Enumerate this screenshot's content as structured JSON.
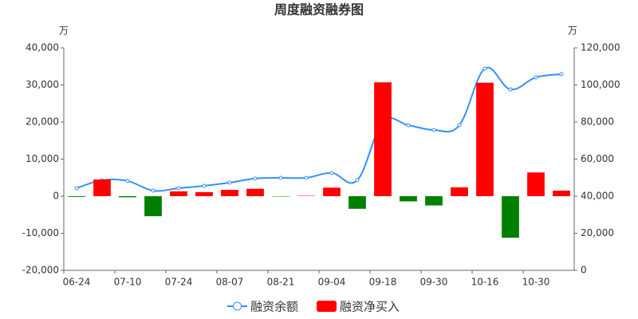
{
  "chart_data": {
    "type": "bar-line",
    "title": "周度融资融券图",
    "y_unit": "万",
    "y2_unit": "万",
    "categories": [
      "06-24",
      null,
      "07-10",
      null,
      "07-24",
      null,
      "08-07",
      null,
      "08-21",
      null,
      "09-04",
      null,
      "09-18",
      null,
      "09-30",
      null,
      "10-16",
      null,
      "10-30",
      null
    ],
    "series": [
      {
        "name": "融资余额",
        "type": "line",
        "axis": "y2",
        "color": "#3390ff",
        "values": [
          44300,
          48600,
          48200,
          43000,
          44300,
          45600,
          47300,
          49500,
          49900,
          49900,
          52500,
          48600,
          80000,
          78300,
          75700,
          78300,
          108800,
          97600,
          104100,
          105800
        ]
      },
      {
        "name": "融资净买入",
        "type": "bar",
        "color": "#ff0000",
        "negative_color": "#008000",
        "values": [
          -200,
          4500,
          -300,
          -5400,
          1300,
          1100,
          1700,
          2000,
          -100,
          100,
          2300,
          -3400,
          30700,
          -1400,
          -2500,
          2400,
          30600,
          -11200,
          6400,
          1500
        ]
      }
    ],
    "ylim": [
      -20000,
      40000
    ],
    "yticks": [
      {
        "value": -20000,
        "label": "-20,000"
      },
      {
        "value": -10000,
        "label": "-10,000"
      },
      0,
      {
        "value": 10000,
        "label": "10,000"
      },
      {
        "value": 20000,
        "label": "20,000"
      },
      {
        "value": 30000,
        "label": "30,000"
      },
      {
        "value": 40000,
        "label": "40,000"
      }
    ],
    "y2lim": [
      0,
      120000
    ],
    "y2ticks": [
      0,
      {
        "value": 20000,
        "label": "20,000"
      },
      {
        "value": 40000,
        "label": "40,000"
      },
      {
        "value": 60000,
        "label": "60,000"
      },
      {
        "value": 80000,
        "label": "80,000"
      },
      {
        "value": 100000,
        "label": "100,000"
      },
      {
        "value": 120000,
        "label": "120,000"
      }
    ],
    "grid": false,
    "legend": "bottom"
  }
}
